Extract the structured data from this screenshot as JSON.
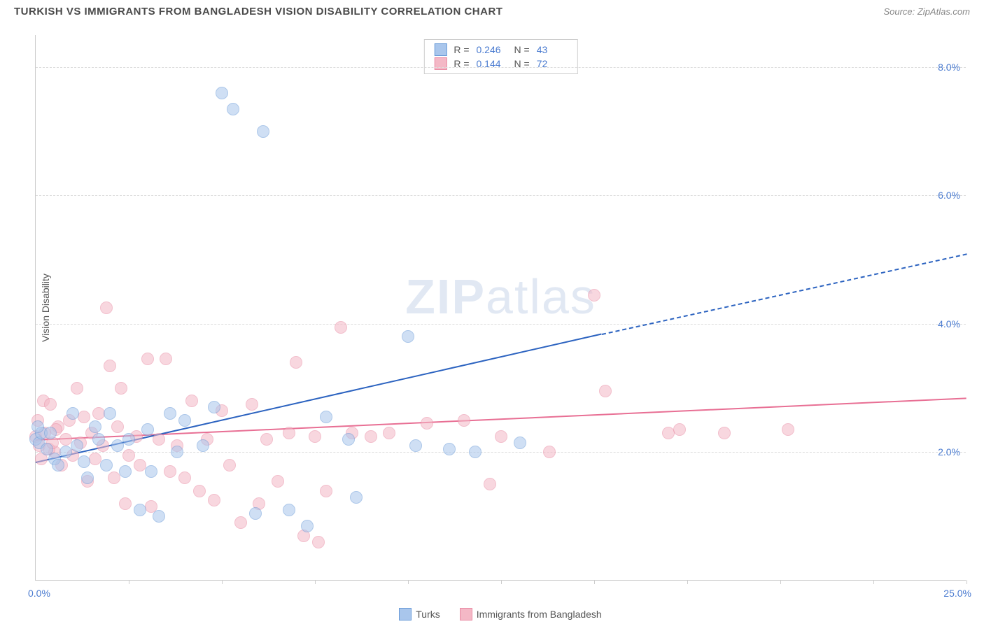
{
  "header": {
    "title": "TURKISH VS IMMIGRANTS FROM BANGLADESH VISION DISABILITY CORRELATION CHART",
    "source_prefix": "Source: ",
    "source_name": "ZipAtlas.com"
  },
  "watermark": {
    "zip": "ZIP",
    "atlas": "atlas"
  },
  "chart": {
    "type": "scatter",
    "y_axis_title": "Vision Disability",
    "background_color": "#ffffff",
    "grid_color": "#dddddd",
    "axis_color": "#cccccc",
    "tick_label_color": "#4a7bd0",
    "xlim": [
      0,
      25
    ],
    "ylim": [
      0,
      8.5
    ],
    "x_ticks": [
      0,
      2.5,
      5,
      7.5,
      10,
      12.5,
      15,
      17.5,
      20,
      22.5,
      25
    ],
    "x_tick_labels": {
      "min": "0.0%",
      "max": "25.0%"
    },
    "y_gridlines": [
      2,
      4,
      6,
      8
    ],
    "y_tick_labels": [
      "2.0%",
      "4.0%",
      "6.0%",
      "8.0%"
    ],
    "point_radius": 9,
    "point_opacity": 0.55,
    "series": [
      {
        "name": "Turks",
        "fill_color": "#a9c6ec",
        "stroke_color": "#6a9bd8",
        "line_color": "#2c63c0",
        "stats": {
          "r_label": "R =",
          "r_value": "0.246",
          "n_label": "N =",
          "n_value": "43"
        },
        "trend": {
          "x1": 0,
          "y1": 1.85,
          "x2": 15.2,
          "y2": 3.85,
          "dash_to_x": 25,
          "dash_to_y": 5.1
        },
        "points": [
          [
            0.0,
            2.2
          ],
          [
            0.1,
            2.15
          ],
          [
            0.15,
            2.3
          ],
          [
            0.3,
            2.05
          ],
          [
            0.4,
            2.3
          ],
          [
            0.5,
            1.9
          ],
          [
            0.6,
            1.8
          ],
          [
            0.8,
            2.0
          ],
          [
            1.0,
            2.6
          ],
          [
            1.1,
            2.1
          ],
          [
            1.3,
            1.85
          ],
          [
            1.4,
            1.6
          ],
          [
            1.6,
            2.4
          ],
          [
            1.7,
            2.2
          ],
          [
            1.9,
            1.8
          ],
          [
            2.0,
            2.6
          ],
          [
            2.2,
            2.1
          ],
          [
            2.4,
            1.7
          ],
          [
            2.5,
            2.2
          ],
          [
            2.8,
            1.1
          ],
          [
            3.0,
            2.35
          ],
          [
            3.1,
            1.7
          ],
          [
            3.3,
            1.0
          ],
          [
            3.6,
            2.6
          ],
          [
            3.8,
            2.0
          ],
          [
            4.0,
            2.5
          ],
          [
            4.5,
            2.1
          ],
          [
            4.8,
            2.7
          ],
          [
            5.0,
            7.6
          ],
          [
            5.3,
            7.35
          ],
          [
            5.9,
            1.05
          ],
          [
            6.1,
            7.0
          ],
          [
            6.8,
            1.1
          ],
          [
            7.3,
            0.85
          ],
          [
            7.8,
            2.55
          ],
          [
            8.4,
            2.2
          ],
          [
            8.6,
            1.3
          ],
          [
            10.0,
            3.8
          ],
          [
            10.2,
            2.1
          ],
          [
            11.1,
            2.05
          ],
          [
            11.8,
            2.0
          ],
          [
            13.0,
            2.15
          ],
          [
            0.05,
            2.4
          ]
        ]
      },
      {
        "name": "Immigrants from Bangladesh",
        "fill_color": "#f4b8c6",
        "stroke_color": "#e98ba4",
        "line_color": "#e86f94",
        "stats": {
          "r_label": "R =",
          "r_value": "0.144",
          "n_label": "N =",
          "n_value": "72"
        },
        "trend": {
          "x1": 0,
          "y1": 2.2,
          "x2": 25,
          "y2": 2.85
        },
        "points": [
          [
            0.0,
            2.25
          ],
          [
            0.1,
            2.1
          ],
          [
            0.2,
            2.8
          ],
          [
            0.25,
            2.3
          ],
          [
            0.4,
            2.75
          ],
          [
            0.5,
            2.0
          ],
          [
            0.6,
            2.4
          ],
          [
            0.7,
            1.8
          ],
          [
            0.8,
            2.2
          ],
          [
            0.9,
            2.5
          ],
          [
            1.0,
            1.95
          ],
          [
            1.1,
            3.0
          ],
          [
            1.2,
            2.15
          ],
          [
            1.3,
            2.55
          ],
          [
            1.4,
            1.55
          ],
          [
            1.5,
            2.3
          ],
          [
            1.6,
            1.9
          ],
          [
            1.7,
            2.6
          ],
          [
            1.8,
            2.1
          ],
          [
            1.9,
            4.25
          ],
          [
            2.0,
            3.35
          ],
          [
            2.1,
            1.6
          ],
          [
            2.2,
            2.4
          ],
          [
            2.3,
            3.0
          ],
          [
            2.4,
            1.2
          ],
          [
            2.5,
            1.95
          ],
          [
            2.7,
            2.25
          ],
          [
            2.8,
            1.8
          ],
          [
            3.0,
            3.45
          ],
          [
            3.1,
            1.15
          ],
          [
            3.3,
            2.2
          ],
          [
            3.5,
            3.45
          ],
          [
            3.6,
            1.7
          ],
          [
            3.8,
            2.1
          ],
          [
            4.0,
            1.6
          ],
          [
            4.2,
            2.8
          ],
          [
            4.4,
            1.4
          ],
          [
            4.6,
            2.2
          ],
          [
            4.8,
            1.25
          ],
          [
            5.0,
            2.65
          ],
          [
            5.2,
            1.8
          ],
          [
            5.5,
            0.9
          ],
          [
            5.8,
            2.75
          ],
          [
            6.0,
            1.2
          ],
          [
            6.2,
            2.2
          ],
          [
            6.5,
            1.55
          ],
          [
            6.8,
            2.3
          ],
          [
            7.0,
            3.4
          ],
          [
            7.2,
            0.7
          ],
          [
            7.5,
            2.25
          ],
          [
            7.6,
            0.6
          ],
          [
            7.8,
            1.4
          ],
          [
            8.2,
            3.95
          ],
          [
            8.5,
            2.3
          ],
          [
            9.0,
            2.25
          ],
          [
            9.5,
            2.3
          ],
          [
            10.5,
            2.45
          ],
          [
            11.5,
            2.5
          ],
          [
            12.2,
            1.5
          ],
          [
            12.5,
            2.25
          ],
          [
            13.8,
            2.0
          ],
          [
            15.0,
            4.45
          ],
          [
            15.3,
            2.95
          ],
          [
            17.0,
            2.3
          ],
          [
            17.3,
            2.35
          ],
          [
            18.5,
            2.3
          ],
          [
            20.2,
            2.35
          ],
          [
            0.15,
            1.9
          ],
          [
            0.35,
            2.05
          ],
          [
            0.55,
            2.35
          ],
          [
            0.05,
            2.5
          ],
          [
            0.45,
            2.15
          ]
        ]
      }
    ]
  },
  "legend": {
    "series1_label": "Turks",
    "series2_label": "Immigrants from Bangladesh"
  }
}
